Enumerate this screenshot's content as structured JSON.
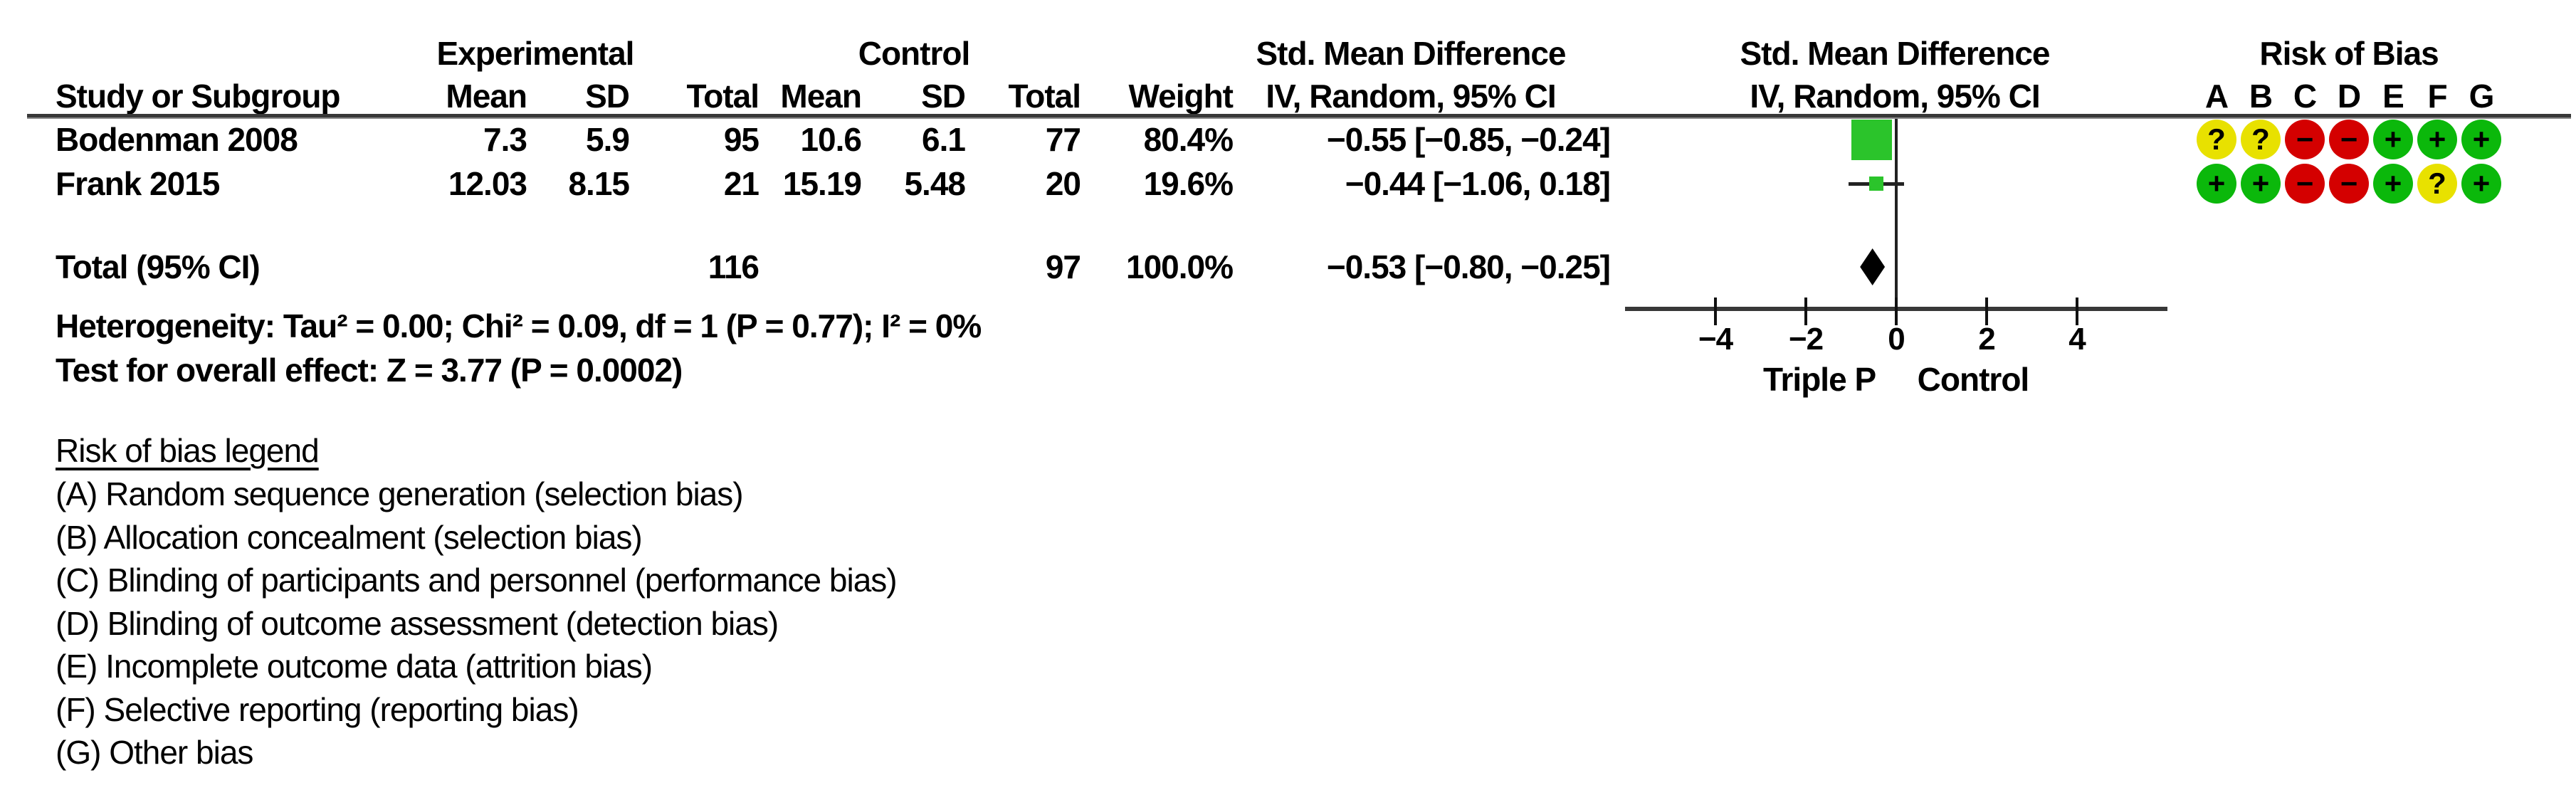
{
  "table": {
    "col_group_headers": {
      "experimental": "Experimental",
      "control": "Control",
      "smd": "Std. Mean Difference"
    },
    "col_headers": {
      "study": "Study or Subgroup",
      "mean": "Mean",
      "sd": "SD",
      "total": "Total",
      "weight": "Weight",
      "iv": "IV, Random, 95% CI"
    },
    "rows": [
      {
        "study": "Bodenman 2008",
        "exp_mean": "7.3",
        "exp_sd": "5.9",
        "exp_total": "95",
        "ctl_mean": "10.6",
        "ctl_sd": "6.1",
        "ctl_total": "77",
        "weight": "80.4%",
        "ci_text": "−0.55 [−0.85, −0.24]"
      },
      {
        "study": "Frank 2015",
        "exp_mean": "12.03",
        "exp_sd": "8.15",
        "exp_total": "21",
        "ctl_mean": "15.19",
        "ctl_sd": "5.48",
        "ctl_total": "20",
        "weight": "19.6%",
        "ci_text": "−0.44 [−1.06, 0.18]"
      }
    ],
    "total_row": {
      "label": "Total (95% CI)",
      "exp_total": "116",
      "ctl_total": "97",
      "weight": "100.0%",
      "ci_text": "−0.53 [−0.80, −0.25]"
    },
    "heterogeneity": "Heterogeneity: Tau² = 0.00; Chi² = 0.09, df = 1 (P = 0.77); I² = 0%",
    "overall_effect": "Test for overall effect: Z = 3.77 (P = 0.0002)"
  },
  "plot": {
    "header_line1": "Std. Mean Difference",
    "header_line2": "IV, Random, 95% CI",
    "axis_label_left": "Triple P",
    "axis_label_right": "Control",
    "square_color": "#2bc42b"
  },
  "risk_of_bias": {
    "title": "Risk of Bias",
    "letters": [
      "A",
      "B",
      "C",
      "D",
      "E",
      "F",
      "G"
    ],
    "rows": [
      [
        "?",
        "?",
        "-",
        "-",
        "+",
        "+",
        "+"
      ],
      [
        "+",
        "+",
        "-",
        "-",
        "+",
        "?",
        "+"
      ]
    ],
    "colors": {
      "+": "#0bb80b",
      "?": "#e8e100",
      "-": "#d40000"
    },
    "glyphs": {
      "+": "+",
      "-": "−",
      "?": "?"
    }
  },
  "legend": {
    "title": "Risk of bias legend",
    "items": [
      "(A) Random sequence generation (selection bias)",
      "(B) Allocation concealment (selection bias)",
      "(C) Blinding of participants and personnel (performance bias)",
      "(D) Blinding of outcome assessment (detection bias)",
      "(E) Incomplete outcome data (attrition bias)",
      "(F) Selective reporting (reporting bias)",
      "(G) Other bias"
    ]
  },
  "chart_data": {
    "type": "forest",
    "effect_measure": "Std. Mean Difference (IV, Random, 95% CI)",
    "studies": [
      {
        "name": "Bodenman 2008",
        "smd": -0.55,
        "ci": [
          -0.85,
          -0.24
        ],
        "weight_pct": 80.4
      },
      {
        "name": "Frank 2015",
        "smd": -0.44,
        "ci": [
          -1.06,
          0.18
        ],
        "weight_pct": 19.6
      }
    ],
    "total": {
      "smd": -0.53,
      "ci": [
        -0.8,
        -0.25
      ]
    },
    "axis": {
      "ticks": [
        -4,
        -2,
        0,
        2,
        4
      ],
      "xlim": [
        -6,
        6
      ],
      "label_left": "Triple P",
      "label_right": "Control"
    },
    "heterogeneity": {
      "tau2": 0.0,
      "chi2": 0.09,
      "df": 1,
      "p": 0.77,
      "i2_pct": 0
    },
    "overall": {
      "z": 3.77,
      "p": 0.0002
    }
  }
}
